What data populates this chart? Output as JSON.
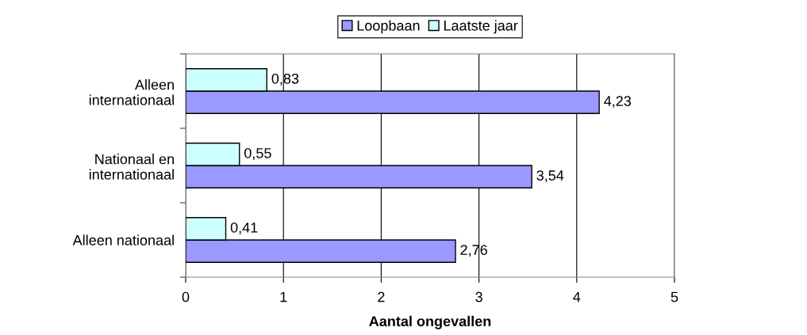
{
  "chart_data": {
    "type": "bar",
    "orientation": "horizontal",
    "xlabel": "Aantal ongevallen",
    "categories": [
      "Alleen\ninternationaal",
      "Nationaal en\ninternationaal",
      "Alleen nationaal"
    ],
    "series": [
      {
        "name": "Loopbaan",
        "color": "#9999ff",
        "values": [
          4.23,
          3.54,
          2.76
        ],
        "value_labels": [
          "4,23",
          "3,54",
          "2,76"
        ]
      },
      {
        "name": "Laatste jaar",
        "color": "#ccffff",
        "values": [
          0.83,
          0.55,
          0.41
        ],
        "value_labels": [
          "0,83",
          "0,55",
          "0,41"
        ]
      }
    ],
    "xlim": [
      0,
      5
    ],
    "xticks": [
      0,
      1,
      2,
      3,
      4,
      5
    ],
    "grid": "x",
    "legend": "top"
  }
}
